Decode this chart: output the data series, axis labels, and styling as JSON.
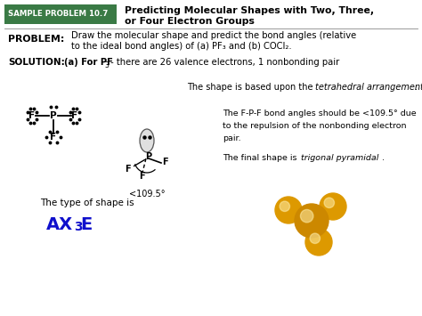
{
  "bg_color": "#ffffff",
  "header_box_color": "#3a7a45",
  "header_label": "SAMPLE PROBLEM 10.7",
  "header_title_line1": "Predicting Molecular Shapes with Two, Three,",
  "header_title_line2": "or Four Electron Groups",
  "problem_label": "PROBLEM:",
  "problem_text_line1": "Draw the molecular shape and predict the bond angles (relative",
  "problem_text_line2": "to the ideal bond angles) of (a) PF₃ and (b) COCl₂.",
  "solution_label": "SOLUTION:",
  "solution_text_a": "(a) For PF",
  "solution_text_b": "3",
  "solution_text_c": " - there are 26 valence electrons, 1 nonbonding pair",
  "shape_text1a": "The shape is based upon the ",
  "shape_text1b": "tetrahedral arrangement",
  "shape_text1c": ".",
  "shape_text2": "The F-P-F bond angles should be <109.5° due",
  "shape_text3": "to the repulsion of the nonbonding electron",
  "shape_text4": "pair.",
  "shape_text5a": "The final shape is ",
  "shape_text5b": "trigonal pyramidal",
  "shape_text5c": ".",
  "angle_label": "<109.5°",
  "type_label": "The type of shape is",
  "ax3e_color": "#1010cc",
  "gold_color": "#cc8800",
  "gold2_color": "#dd9900"
}
